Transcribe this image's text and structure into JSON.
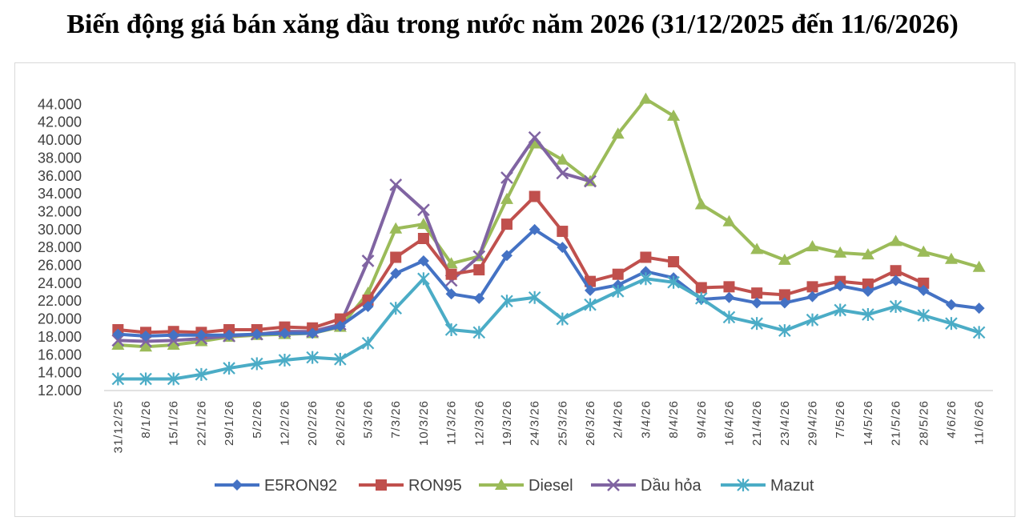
{
  "title": "Biến động giá bán xăng dầu trong nước năm 2026 (31/12/2025 đến 11/6/2026)",
  "chart_data": {
    "type": "line",
    "title": "Biến động giá bán xăng dầu trong nước năm 2026 (31/12/2025 đến 11/6/2026)",
    "categories": [
      "31/12/25",
      "8/1/26",
      "15/1/26",
      "22/1/26",
      "29/1/26",
      "5/2/26",
      "12/2/26",
      "20/2/26",
      "26/2/26",
      "5/3/26",
      "7/3/26",
      "10/3/26",
      "11/3/26",
      "12/3/26",
      "19/3/26",
      "24/3/26",
      "25/3/26",
      "26/3/26",
      "2/4/26",
      "3/4/26",
      "8/4/26",
      "9/4/26",
      "16/4/26",
      "21/4/26",
      "23/4/26",
      "29/4/26",
      "7/5/26",
      "14/5/26",
      "21/5/26",
      "28/5/26",
      "4/6/26",
      "11/6/26"
    ],
    "y_ticks": [
      "12.000",
      "14.000",
      "16.000",
      "18.000",
      "20.000",
      "22.000",
      "24.000",
      "26.000",
      "28.000",
      "30.000",
      "32.000",
      "34.000",
      "36.000",
      "38.000",
      "40.000",
      "42.000",
      "44.000"
    ],
    "ylim": [
      12000,
      46000
    ],
    "legend_position": "bottom",
    "series": [
      {
        "name": "E5RON92",
        "color": "#4472C4",
        "marker": "diamond",
        "values": [
          18300,
          18100,
          18200,
          18200,
          18200,
          18300,
          18400,
          18400,
          19200,
          21400,
          25100,
          26500,
          22800,
          22300,
          27100,
          30000,
          28000,
          23200,
          23800,
          25300,
          24600,
          22200,
          22400,
          21800,
          21800,
          22500,
          23700,
          23100,
          24300,
          23200,
          21600,
          21200
        ]
      },
      {
        "name": "RON95",
        "color": "#C0504D",
        "marker": "square",
        "values": [
          18800,
          18500,
          18600,
          18500,
          18800,
          18800,
          19100,
          19000,
          20000,
          22100,
          26900,
          29000,
          25000,
          25500,
          30600,
          33700,
          29800,
          24200,
          25000,
          26900,
          26400,
          23500,
          23600,
          22900,
          22700,
          23600,
          24200,
          23900,
          25400,
          24000,
          null,
          null
        ]
      },
      {
        "name": "Diesel",
        "color": "#9BBB59",
        "marker": "triangle",
        "values": [
          17100,
          16900,
          17100,
          17500,
          18000,
          18200,
          18300,
          18400,
          19100,
          22900,
          30100,
          30600,
          26200,
          27000,
          33400,
          39600,
          37800,
          35400,
          40700,
          44600,
          42700,
          32800,
          30900,
          27800,
          26600,
          28100,
          27400,
          27200,
          28700,
          27500,
          26700,
          25800
        ]
      },
      {
        "name": "Dầu hỏa",
        "color": "#8064A2",
        "marker": "x",
        "values": [
          17600,
          17500,
          17600,
          17800,
          18100,
          18300,
          18600,
          18600,
          19400,
          26500,
          35000,
          32200,
          24300,
          27000,
          35800,
          40300,
          36300,
          35400,
          null,
          null,
          null,
          null,
          null,
          null,
          null,
          null,
          null,
          null,
          null,
          null,
          null,
          null
        ]
      },
      {
        "name": "Mazut",
        "color": "#4BACC6",
        "marker": "star",
        "values": [
          13300,
          13300,
          13300,
          13800,
          14500,
          15000,
          15400,
          15700,
          15500,
          17300,
          21200,
          24500,
          18800,
          18500,
          22000,
          22400,
          20000,
          21600,
          23100,
          24500,
          24100,
          22300,
          20200,
          19500,
          18700,
          19900,
          21000,
          20500,
          21400,
          20400,
          19500,
          18500
        ]
      }
    ]
  }
}
